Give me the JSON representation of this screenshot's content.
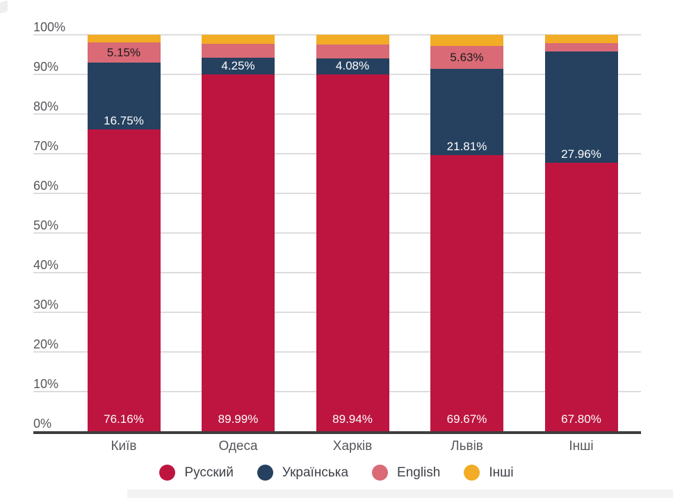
{
  "chart_data": {
    "type": "bar",
    "stacked": true,
    "unit": "%",
    "title": "",
    "xlabel": "",
    "ylabel": "",
    "ylim": [
      0,
      100
    ],
    "grid": true,
    "legend_position": "bottom",
    "categories": [
      "Київ",
      "Одеса",
      "Харків",
      "Львів",
      "Інші"
    ],
    "y_ticks": [
      "0%",
      "10%",
      "20%",
      "30%",
      "40%",
      "50%",
      "60%",
      "70%",
      "80%",
      "90%",
      "100%"
    ],
    "series": [
      {
        "name": "Русский",
        "color": "#bd153f",
        "label_color": "#ffffff",
        "values": [
          76.16,
          89.99,
          89.94,
          69.67,
          67.8
        ],
        "labels": [
          "76.16%",
          "89.99%",
          "89.94%",
          "69.67%",
          "67.80%"
        ]
      },
      {
        "name": "Українська",
        "color": "#25415f",
        "label_color": "#ffffff",
        "values": [
          16.75,
          4.25,
          4.08,
          21.81,
          27.96
        ],
        "labels": [
          "16.75%",
          "4.25%",
          "4.08%",
          "21.81%",
          "27.96%"
        ]
      },
      {
        "name": "English",
        "color": "#d96a76",
        "label_color": "#1c1c1c",
        "values": [
          5.15,
          3.4,
          3.6,
          5.63,
          2.1
        ],
        "labels": [
          "5.15%",
          null,
          null,
          "5.63%",
          null
        ]
      },
      {
        "name": "Інші",
        "color": "#f2ac25",
        "label_color": "#1c1c1c",
        "values": [
          1.94,
          2.36,
          2.38,
          2.89,
          2.14
        ],
        "labels": [
          null,
          null,
          null,
          null,
          null
        ]
      }
    ],
    "legend": [
      "Русский",
      "Українська",
      "English",
      "Інші"
    ]
  },
  "colors": {
    "background": "#ffffff",
    "gridline": "#dcdcdc",
    "axis_line": "#3d3d3d",
    "tick_text": "#55565a",
    "category_text": "#55565a",
    "legend_text": "#3e4147",
    "footer_strip": "#f3f3f4"
  }
}
